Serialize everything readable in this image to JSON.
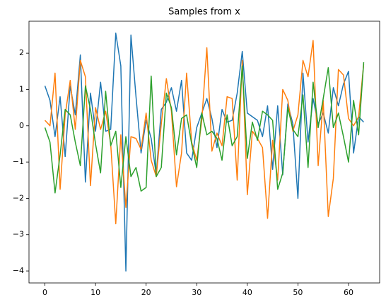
{
  "chart_data": {
    "type": "line",
    "title": "Samples from x",
    "x": [
      0,
      1,
      2,
      3,
      4,
      5,
      6,
      7,
      8,
      9,
      10,
      11,
      12,
      13,
      14,
      15,
      16,
      17,
      18,
      19,
      20,
      21,
      22,
      23,
      24,
      25,
      26,
      27,
      28,
      29,
      30,
      31,
      32,
      33,
      34,
      35,
      36,
      37,
      38,
      39,
      40,
      41,
      42,
      43,
      44,
      45,
      46,
      47,
      48,
      49,
      50,
      51,
      52,
      53,
      54,
      55,
      56,
      57,
      58,
      59,
      60,
      61,
      62,
      63
    ],
    "series": [
      {
        "color": "#1f77b4",
        "values": [
          1.1,
          0.7,
          -0.3,
          0.8,
          -0.85,
          1.1,
          0.3,
          1.95,
          -1.55,
          0.9,
          -0.15,
          1.2,
          -0.15,
          -0.1,
          2.55,
          1.65,
          -4.0,
          2.5,
          0.8,
          -0.75,
          0.15,
          -0.35,
          -1.35,
          0.45,
          0.65,
          1.05,
          0.4,
          1.25,
          -0.75,
          -0.95,
          -0.05,
          0.35,
          0.75,
          0.2,
          -0.6,
          0.45,
          0.1,
          0.15,
          0.9,
          2.05,
          0.35,
          0.25,
          0.15,
          -0.3,
          0.55,
          -1.2,
          0.55,
          -1.35,
          0.6,
          0.05,
          -2.0,
          1.45,
          -0.45,
          0.75,
          0.05,
          0.35,
          -0.2,
          1.05,
          0.55,
          1.15,
          1.5,
          -0.75,
          0.25,
          0.1
        ]
      },
      {
        "color": "#ff7f0e",
        "values": [
          0.15,
          0.0,
          1.45,
          -1.75,
          0.3,
          1.25,
          -0.1,
          1.8,
          1.35,
          -1.65,
          0.5,
          -0.1,
          0.4,
          -0.5,
          -2.7,
          -0.25,
          -2.25,
          -0.3,
          -0.35,
          -0.65,
          0.35,
          -0.95,
          -1.4,
          0.05,
          1.3,
          0.4,
          -1.68,
          -0.75,
          1.45,
          -0.45,
          -0.95,
          0.15,
          2.15,
          -0.7,
          -0.2,
          -0.55,
          0.8,
          0.75,
          -1.5,
          1.8,
          -1.9,
          -0.15,
          -0.35,
          -0.6,
          -2.55,
          -0.4,
          -1.5,
          1.0,
          0.7,
          -0.15,
          0.3,
          1.8,
          1.35,
          2.35,
          -1.1,
          0.7,
          -2.5,
          -1.45,
          1.55,
          1.4,
          0.2,
          0.0,
          0.25,
          1.7
        ]
      },
      {
        "color": "#2ca02c",
        "values": [
          -0.05,
          -0.45,
          -1.85,
          -0.8,
          0.45,
          0.3,
          -0.45,
          -1.1,
          1.1,
          0.45,
          -0.5,
          -1.3,
          0.95,
          -0.55,
          -0.15,
          -1.7,
          -0.3,
          -1.4,
          -1.15,
          -1.8,
          -1.7,
          1.37,
          -1.4,
          -1.15,
          0.9,
          0.5,
          -0.8,
          0.2,
          0.3,
          -0.5,
          -1.15,
          0.35,
          -0.25,
          -0.15,
          -0.35,
          -0.95,
          0.3,
          -0.55,
          -0.3,
          1.65,
          -0.9,
          0.1,
          -0.4,
          0.4,
          0.3,
          0.15,
          -1.75,
          -1.3,
          0.5,
          -0.1,
          -0.3,
          0.85,
          -1.15,
          1.2,
          -0.05,
          0.75,
          1.6,
          -0.05,
          0.35,
          -0.3,
          -1.0,
          0.7,
          -0.25,
          1.75
        ]
      }
    ],
    "xlim": [
      -3.15,
      66.15
    ],
    "ylim": [
      -4.33,
      2.88
    ],
    "xticks": [
      0,
      10,
      20,
      30,
      40,
      50,
      60
    ],
    "yticks": [
      {
        "value": -4,
        "label": "−4"
      },
      {
        "value": -3,
        "label": "−3"
      },
      {
        "value": -2,
        "label": "−2"
      },
      {
        "value": -1,
        "label": "−1"
      },
      0,
      1,
      2
    ]
  }
}
